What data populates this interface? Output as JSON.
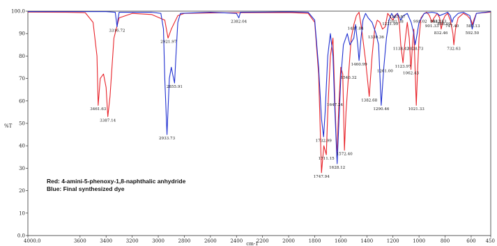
{
  "chart_data": {
    "type": "line",
    "xlabel": "cm-1",
    "ylabel": "%T",
    "xlim": [
      4000,
      450
    ],
    "ylim": [
      0,
      100
    ],
    "x_ticks": [
      "4000.0",
      "3600",
      "3400",
      "3200",
      "3000",
      "2800",
      "2600",
      "2400",
      "2200",
      "2000",
      "1800",
      "1600",
      "1400",
      "1200",
      "1000",
      "800",
      "600",
      "450"
    ],
    "x_tick_values": [
      4000,
      3600,
      3400,
      3200,
      3000,
      2800,
      2600,
      2400,
      2200,
      2000,
      1800,
      1600,
      1400,
      1200,
      1000,
      800,
      600,
      450
    ],
    "y_ticks": [
      "0.0",
      "10",
      "20",
      "30",
      "40",
      "50",
      "60",
      "70",
      "80",
      "90",
      "100.0"
    ],
    "y_tick_values": [
      0,
      10,
      20,
      30,
      40,
      50,
      60,
      70,
      80,
      90,
      100
    ],
    "legend": [
      "Red: 4-amini-5-phenoxy-1,8-naphthalic anhydride",
      "Blue: Final synthesized dye"
    ],
    "series": [
      {
        "color": "#e8232a",
        "points": [
          [
            4000,
            99.6
          ],
          [
            3700,
            99.5
          ],
          [
            3560,
            99.3
          ],
          [
            3500,
            95
          ],
          [
            3470,
            80
          ],
          [
            3461,
            58
          ],
          [
            3445,
            70
          ],
          [
            3420,
            72
          ],
          [
            3400,
            66
          ],
          [
            3387,
            53
          ],
          [
            3370,
            62
          ],
          [
            3340,
            88
          ],
          [
            3300,
            97
          ],
          [
            3200,
            99
          ],
          [
            3050,
            98.5
          ],
          [
            2950,
            96
          ],
          [
            2925,
            88
          ],
          [
            2900,
            92
          ],
          [
            2850,
            98
          ],
          [
            2800,
            99
          ],
          [
            2600,
            99.2
          ],
          [
            2400,
            99.3
          ],
          [
            2000,
            99.4
          ],
          [
            1850,
            99
          ],
          [
            1800,
            95
          ],
          [
            1770,
            72
          ],
          [
            1748,
            28
          ],
          [
            1730,
            40
          ],
          [
            1711,
            36
          ],
          [
            1700,
            55
          ],
          [
            1680,
            80
          ],
          [
            1660,
            88
          ],
          [
            1645,
            60
          ],
          [
            1630,
            35
          ],
          [
            1615,
            58
          ],
          [
            1600,
            75
          ],
          [
            1585,
            72
          ],
          [
            1572,
            38
          ],
          [
            1560,
            55
          ],
          [
            1540,
            72
          ],
          [
            1520,
            88
          ],
          [
            1500,
            94
          ],
          [
            1480,
            98
          ],
          [
            1460,
            99.5
          ],
          [
            1440,
            92
          ],
          [
            1410,
            78
          ],
          [
            1382,
            62
          ],
          [
            1360,
            80
          ],
          [
            1340,
            92
          ],
          [
            1320,
            96
          ],
          [
            1300,
            95
          ],
          [
            1280,
            92
          ],
          [
            1260,
            93
          ],
          [
            1240,
            99
          ],
          [
            1215,
            97
          ],
          [
            1200,
            96
          ],
          [
            1185,
            98
          ],
          [
            1165,
            99
          ],
          [
            1150,
            94
          ],
          [
            1140,
            85
          ],
          [
            1123,
            77
          ],
          [
            1110,
            85
          ],
          [
            1090,
            95
          ],
          [
            1075,
            88
          ],
          [
            1062,
            74
          ],
          [
            1050,
            85
          ],
          [
            1040,
            92
          ],
          [
            1021,
            58
          ],
          [
            1010,
            75
          ],
          [
            1000,
            88
          ],
          [
            985,
            97
          ],
          [
            960,
            99
          ],
          [
            940,
            99.5
          ],
          [
            920,
            98
          ],
          [
            901,
            95
          ],
          [
            885,
            97
          ],
          [
            860,
            99
          ],
          [
            842,
            97
          ],
          [
            830,
            92
          ],
          [
            815,
            96
          ],
          [
            800,
            98
          ],
          [
            780,
            99
          ],
          [
            760,
            96
          ],
          [
            740,
            90
          ],
          [
            733,
            85
          ],
          [
            720,
            92
          ],
          [
            700,
            97
          ],
          [
            660,
            99
          ],
          [
            630,
            98
          ],
          [
            600,
            96
          ],
          [
            590,
            94
          ],
          [
            580,
            96
          ],
          [
            560,
            99
          ],
          [
            450,
            99.6
          ]
        ]
      },
      {
        "color": "#1f2fd0",
        "points": [
          [
            4000,
            99.8
          ],
          [
            3400,
            99.8
          ],
          [
            3330,
            99.5
          ],
          [
            3320,
            95
          ],
          [
            3316,
            93
          ],
          [
            3310,
            96
          ],
          [
            3300,
            99.5
          ],
          [
            3050,
            99.5
          ],
          [
            2980,
            99
          ],
          [
            2960,
            92
          ],
          [
            2950,
            70
          ],
          [
            2933,
            45
          ],
          [
            2915,
            70
          ],
          [
            2900,
            75
          ],
          [
            2890,
            72
          ],
          [
            2875,
            68
          ],
          [
            2860,
            85
          ],
          [
            2850,
            95
          ],
          [
            2830,
            99
          ],
          [
            2600,
            99.5
          ],
          [
            2400,
            99
          ],
          [
            2382,
            97
          ],
          [
            2370,
            99.5
          ],
          [
            2000,
            99.7
          ],
          [
            1850,
            99.5
          ],
          [
            1800,
            96
          ],
          [
            1770,
            75
          ],
          [
            1748,
            52
          ],
          [
            1732,
            44
          ],
          [
            1720,
            55
          ],
          [
            1700,
            80
          ],
          [
            1680,
            90
          ],
          [
            1660,
            80
          ],
          [
            1645,
            55
          ],
          [
            1628,
            32
          ],
          [
            1615,
            50
          ],
          [
            1600,
            70
          ],
          [
            1580,
            85
          ],
          [
            1550,
            90
          ],
          [
            1530,
            85
          ],
          [
            1500,
            88
          ],
          [
            1487,
            94
          ],
          [
            1470,
            85
          ],
          [
            1460,
            78
          ],
          [
            1445,
            88
          ],
          [
            1430,
            96
          ],
          [
            1410,
            99
          ],
          [
            1390,
            97
          ],
          [
            1360,
            95
          ],
          [
            1330,
            90
          ],
          [
            1310,
            85
          ],
          [
            1290,
            58
          ],
          [
            1270,
            75
          ],
          [
            1250,
            88
          ],
          [
            1230,
            96
          ],
          [
            1210,
            99
          ],
          [
            1190,
            97
          ],
          [
            1180,
            98
          ],
          [
            1165,
            99
          ],
          [
            1140,
            96
          ],
          [
            1120,
            98
          ],
          [
            1090,
            99
          ],
          [
            1060,
            95
          ],
          [
            1040,
            90
          ],
          [
            1030,
            85
          ],
          [
            1020,
            88
          ],
          [
            1000,
            95
          ],
          [
            960,
            99
          ],
          [
            900,
            99.5
          ],
          [
            860,
            99
          ],
          [
            842,
            98
          ],
          [
            800,
            99
          ],
          [
            780,
            99.5
          ],
          [
            760,
            98
          ],
          [
            747,
            95
          ],
          [
            735,
            97
          ],
          [
            700,
            99
          ],
          [
            660,
            99.5
          ],
          [
            610,
            98
          ],
          [
            592,
            92
          ],
          [
            580,
            95
          ],
          [
            560,
            99
          ],
          [
            450,
            99.8
          ]
        ]
      }
    ],
    "annotations": [
      {
        "text": "3461.63",
        "x": 3461,
        "y": 58,
        "color": "red"
      },
      {
        "text": "3387.14",
        "x": 3387,
        "y": 53,
        "color": "red"
      },
      {
        "text": "3316.72",
        "x": 3316,
        "y": 93,
        "color": "blue"
      },
      {
        "text": "2921.97",
        "x": 2921,
        "y": 88,
        "color": "red"
      },
      {
        "text": "2855.91",
        "x": 2875,
        "y": 68,
        "color": "blue"
      },
      {
        "text": "2933.73",
        "x": 2933,
        "y": 45,
        "color": "blue"
      },
      {
        "text": "2382.04",
        "x": 2382,
        "y": 97,
        "color": "blue"
      },
      {
        "text": "1732.99",
        "x": 1732,
        "y": 44,
        "color": "blue"
      },
      {
        "text": "1711.15",
        "x": 1711,
        "y": 36,
        "color": "red"
      },
      {
        "text": "1747.94",
        "x": 1748,
        "y": 28,
        "color": "red"
      },
      {
        "text": "1628.12",
        "x": 1628,
        "y": 32,
        "color": "blue"
      },
      {
        "text": "1647.24",
        "x": 1645,
        "y": 60,
        "color": "red"
      },
      {
        "text": "1572.40",
        "x": 1572,
        "y": 38,
        "color": "red"
      },
      {
        "text": "1540.32",
        "x": 1540,
        "y": 72,
        "color": "red"
      },
      {
        "text": "1487.84",
        "x": 1487,
        "y": 94,
        "color": "blue"
      },
      {
        "text": "1460.99",
        "x": 1460,
        "y": 78,
        "color": "blue"
      },
      {
        "text": "1382.68",
        "x": 1382,
        "y": 62,
        "color": "red"
      },
      {
        "text": "1330.36",
        "x": 1330,
        "y": 90,
        "color": "blue"
      },
      {
        "text": "1261.00",
        "x": 1261,
        "y": 75,
        "color": "red"
      },
      {
        "text": "1290.46",
        "x": 1290,
        "y": 58,
        "color": "blue"
      },
      {
        "text": "1221.99",
        "x": 1221,
        "y": 96,
        "color": "red"
      },
      {
        "text": "1167.87",
        "x": 1167,
        "y": 99,
        "color": "red"
      },
      {
        "text": "1181.38",
        "x": 1181,
        "y": 97,
        "color": "blue"
      },
      {
        "text": "1123.97",
        "x": 1123,
        "y": 77,
        "color": "red"
      },
      {
        "text": "1138.42",
        "x": 1138,
        "y": 85,
        "color": "red"
      },
      {
        "text": "1062.43",
        "x": 1062,
        "y": 74,
        "color": "red"
      },
      {
        "text": "1028.73",
        "x": 1028,
        "y": 85,
        "color": "blue"
      },
      {
        "text": "1021.33",
        "x": 1021,
        "y": 58,
        "color": "red"
      },
      {
        "text": "991.02",
        "x": 991,
        "y": 97,
        "color": "red"
      },
      {
        "text": "901.33",
        "x": 901,
        "y": 95,
        "color": "red"
      },
      {
        "text": "863.23",
        "x": 863,
        "y": 97,
        "color": "red"
      },
      {
        "text": "842.43",
        "x": 842,
        "y": 97,
        "color": "red"
      },
      {
        "text": "832.46",
        "x": 832,
        "y": 92,
        "color": "red"
      },
      {
        "text": "808.09",
        "x": 808,
        "y": 96,
        "color": "red"
      },
      {
        "text": "747.40",
        "x": 747,
        "y": 95,
        "color": "blue"
      },
      {
        "text": "732.63",
        "x": 733,
        "y": 85,
        "color": "red"
      },
      {
        "text": "592.50",
        "x": 592,
        "y": 92,
        "color": "blue"
      },
      {
        "text": "585.13",
        "x": 585,
        "y": 95,
        "color": "red"
      }
    ]
  }
}
